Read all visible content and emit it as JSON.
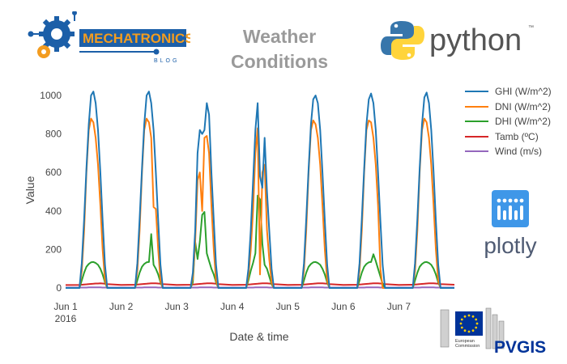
{
  "header": {
    "title_line1": "Weather",
    "title_line2": "Conditions",
    "mech_logo_text": "MECHATRONICS",
    "mech_logo_sub": "BLOG",
    "python_text": "python",
    "python_tm": "™",
    "plotly_text": "plotly",
    "eu_line1": "European",
    "eu_line2": "Commission",
    "pvgis_text": "PVGIS"
  },
  "colors": {
    "ghi": "#1f77b4",
    "dni": "#ff7f0e",
    "dhi": "#2ca02c",
    "tamb": "#d62728",
    "wind": "#9467bd",
    "title": "#9a9a9a",
    "mech_blue": "#1c5fa8",
    "mech_orange": "#f39c1f",
    "plotly_blue": "#3f97e8",
    "eu_blue": "#003399"
  },
  "chart_data": {
    "type": "line",
    "xlabel": "Date & time",
    "ylabel": "Value",
    "ylim": [
      0,
      1000
    ],
    "yticks": [
      0,
      200,
      400,
      600,
      800,
      1000
    ],
    "x_ticks": [
      "Jun 1",
      "Jun 2",
      "Jun 3",
      "Jun 4",
      "Jun 5",
      "Jun 6",
      "Jun 7"
    ],
    "x_tick_sublabel": "2016",
    "grid": false,
    "legend_position": "right",
    "x_hours": [
      0,
      6,
      7,
      8,
      9,
      10,
      11,
      12,
      13,
      14,
      15,
      16,
      17,
      18,
      24,
      30,
      31,
      32,
      33,
      34,
      35,
      36,
      37,
      38,
      39,
      40,
      41,
      42,
      48,
      54,
      55,
      56,
      57,
      58,
      59,
      60,
      61,
      62,
      63,
      64,
      65,
      66,
      72,
      78,
      79,
      80,
      81,
      82,
      83,
      84,
      85,
      86,
      87,
      88,
      89,
      90,
      96,
      102,
      103,
      104,
      105,
      106,
      107,
      108,
      109,
      110,
      111,
      112,
      113,
      114,
      120,
      126,
      127,
      128,
      129,
      130,
      131,
      132,
      133,
      134,
      135,
      136,
      137,
      138,
      144,
      150,
      151,
      152,
      153,
      154,
      155,
      156,
      157,
      158,
      159,
      160,
      161,
      162,
      168
    ],
    "series": [
      {
        "name": "GHI (W/m^2)",
        "values": [
          0,
          0,
          130,
          360,
          620,
          850,
          1000,
          1020,
          960,
          820,
          600,
          350,
          120,
          0,
          0,
          0,
          130,
          360,
          620,
          850,
          1000,
          1020,
          960,
          820,
          600,
          350,
          120,
          0,
          0,
          0,
          80,
          300,
          700,
          820,
          800,
          820,
          960,
          900,
          600,
          350,
          120,
          0,
          0,
          0,
          100,
          300,
          550,
          820,
          960,
          580,
          520,
          780,
          500,
          300,
          100,
          0,
          0,
          0,
          130,
          360,
          620,
          850,
          980,
          1000,
          960,
          820,
          600,
          350,
          120,
          0,
          0,
          0,
          130,
          360,
          620,
          850,
          980,
          1010,
          960,
          820,
          600,
          350,
          120,
          0,
          0,
          0,
          130,
          360,
          620,
          850,
          990,
          1015,
          960,
          820,
          600,
          350,
          120,
          0,
          0
        ]
      },
      {
        "name": "DNI (W/m^2)",
        "values": [
          0,
          0,
          90,
          300,
          600,
          820,
          880,
          860,
          780,
          640,
          430,
          200,
          40,
          0,
          0,
          0,
          90,
          300,
          600,
          820,
          880,
          860,
          780,
          420,
          410,
          200,
          40,
          0,
          0,
          0,
          50,
          240,
          560,
          600,
          400,
          780,
          790,
          700,
          430,
          200,
          40,
          0,
          0,
          0,
          60,
          200,
          400,
          700,
          830,
          70,
          600,
          640,
          300,
          150,
          30,
          0,
          0,
          0,
          90,
          300,
          600,
          820,
          870,
          850,
          780,
          640,
          430,
          200,
          40,
          0,
          0,
          0,
          90,
          300,
          600,
          820,
          870,
          860,
          780,
          640,
          430,
          100,
          0,
          0,
          0,
          0,
          90,
          300,
          600,
          820,
          880,
          860,
          780,
          640,
          430,
          200,
          40,
          0,
          0
        ]
      },
      {
        "name": "DHI (W/m^2)",
        "values": [
          0,
          0,
          40,
          80,
          110,
          125,
          133,
          135,
          130,
          120,
          100,
          70,
          30,
          0,
          0,
          0,
          40,
          80,
          110,
          125,
          133,
          135,
          280,
          120,
          100,
          70,
          30,
          0,
          0,
          0,
          30,
          240,
          150,
          240,
          380,
          395,
          180,
          140,
          100,
          70,
          30,
          0,
          0,
          0,
          40,
          90,
          130,
          180,
          480,
          460,
          230,
          120,
          100,
          60,
          20,
          0,
          0,
          0,
          40,
          80,
          110,
          125,
          133,
          135,
          130,
          120,
          100,
          70,
          30,
          0,
          0,
          0,
          40,
          80,
          110,
          125,
          133,
          135,
          175,
          140,
          100,
          60,
          20,
          0,
          0,
          0,
          40,
          80,
          110,
          125,
          133,
          135,
          130,
          120,
          100,
          70,
          30,
          0,
          0
        ]
      },
      {
        "name": "Tamb (ºC)",
        "values": [
          15,
          16,
          17,
          18,
          19,
          20,
          21,
          22,
          23,
          23,
          24,
          23,
          22,
          20,
          16,
          17,
          18,
          19,
          20,
          21,
          22,
          23,
          24,
          24,
          24,
          23,
          22,
          20,
          16,
          17,
          18,
          19,
          20,
          21,
          22,
          23,
          24,
          24,
          24,
          23,
          22,
          20,
          16,
          17,
          18,
          19,
          20,
          21,
          22,
          23,
          24,
          24,
          24,
          23,
          22,
          20,
          16,
          17,
          18,
          19,
          20,
          21,
          22,
          23,
          24,
          24,
          24,
          23,
          22,
          20,
          16,
          17,
          18,
          19,
          20,
          21,
          22,
          23,
          24,
          24,
          24,
          23,
          22,
          20,
          16,
          17,
          18,
          19,
          20,
          21,
          22,
          23,
          24,
          24,
          24,
          23,
          22,
          20,
          17
        ]
      },
      {
        "name": "Wind (m/s)",
        "values": [
          2,
          2,
          2,
          2,
          2,
          3,
          3,
          3,
          3,
          3,
          3,
          2,
          2,
          2,
          2,
          2,
          2,
          2,
          2,
          3,
          3,
          3,
          3,
          3,
          3,
          2,
          2,
          2,
          2,
          2,
          2,
          2,
          2,
          3,
          3,
          3,
          3,
          3,
          3,
          2,
          2,
          2,
          2,
          2,
          2,
          2,
          2,
          3,
          3,
          3,
          3,
          3,
          3,
          2,
          2,
          2,
          2,
          2,
          2,
          2,
          2,
          3,
          3,
          3,
          3,
          3,
          3,
          2,
          2,
          2,
          2,
          2,
          2,
          2,
          2,
          3,
          3,
          3,
          3,
          3,
          3,
          2,
          2,
          2,
          2,
          2,
          2,
          2,
          2,
          3,
          3,
          3,
          3,
          3,
          3,
          2,
          2,
          2,
          2
        ]
      }
    ]
  }
}
